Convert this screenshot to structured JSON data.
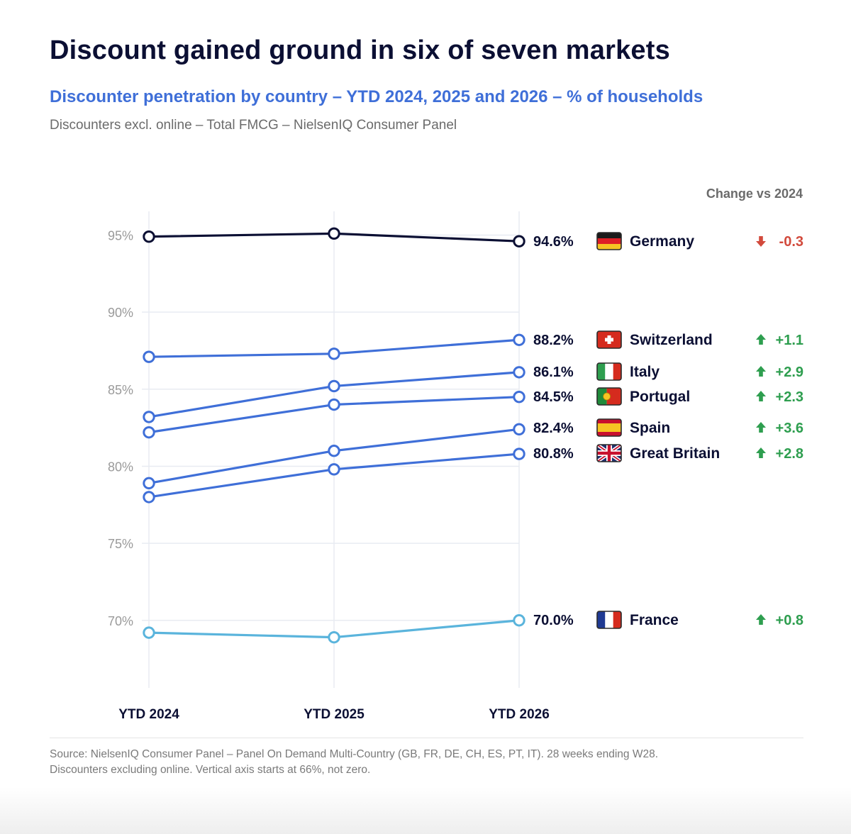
{
  "header": {
    "title": "Discount gained ground in six of seven markets",
    "subtitle": "Discounter penetration by country – YTD 2024, 2025 and 2026 – % of households",
    "note": "Discounters excl. online – Total FMCG – NielsenIQ Consumer Panel"
  },
  "footer": {
    "source_line1": "Source: NielsenIQ Consumer Panel – Panel On Demand Multi-Country (GB, FR, DE, CH, ES, PT, IT). 28 weeks ending W28.",
    "source_line2": "Discounters excluding online. Vertical axis starts at 66%, not zero."
  },
  "colors": {
    "germany_line": "#0b0f33",
    "blue_line": "#3f6fd8",
    "france_line": "#5ab4dc",
    "up": "#2e9e4f",
    "down": "#d24a3c",
    "grid": "#e8ebf2",
    "tick_text": "#9a9a9a"
  },
  "chart_data": {
    "type": "line",
    "title": "Discounter penetration by country – YTD 2024, 2025 and 2026 – % of households",
    "x": [
      "YTD 2024",
      "YTD 2025",
      "YTD 2026"
    ],
    "ylim": [
      66,
      96
    ],
    "yticks": [
      70,
      75,
      80,
      85,
      90,
      95
    ],
    "ytick_labels": [
      "70%",
      "75%",
      "80%",
      "85%",
      "90%",
      "95%"
    ],
    "grid": true,
    "change_header": "Change vs 2024",
    "series": [
      {
        "name": "Germany",
        "values": [
          94.9,
          95.1,
          94.6
        ],
        "end_label": "94.6%",
        "change": "-0.3",
        "direction": "down",
        "flag": "germany-flag-icon",
        "color": "#0b0f33"
      },
      {
        "name": "Switzerland",
        "values": [
          87.1,
          87.3,
          88.2
        ],
        "end_label": "88.2%",
        "change": "+1.1",
        "direction": "up",
        "flag": "switzerland-flag-icon",
        "color": "#3f6fd8"
      },
      {
        "name": "Italy",
        "values": [
          83.2,
          85.2,
          86.1
        ],
        "end_label": "86.1%",
        "change": "+2.9",
        "direction": "up",
        "flag": "italy-flag-icon",
        "color": "#3f6fd8"
      },
      {
        "name": "Portugal",
        "values": [
          82.2,
          84.0,
          84.5
        ],
        "end_label": "84.5%",
        "change": "+2.3",
        "direction": "up",
        "flag": "portugal-flag-icon",
        "color": "#3f6fd8"
      },
      {
        "name": "Spain",
        "values": [
          78.9,
          81.0,
          82.4
        ],
        "end_label": "82.4%",
        "change": "+3.6",
        "direction": "up",
        "flag": "spain-flag-icon",
        "color": "#3f6fd8"
      },
      {
        "name": "Great Britain",
        "values": [
          78.0,
          79.8,
          80.8
        ],
        "end_label": "80.8%",
        "change": "+2.8",
        "direction": "up",
        "flag": "great-britain-flag-icon",
        "color": "#3f6fd8"
      },
      {
        "name": "France",
        "values": [
          69.2,
          68.9,
          70.0
        ],
        "end_label": "70.0%",
        "change": "+0.8",
        "direction": "up",
        "flag": "france-flag-icon",
        "color": "#5ab4dc"
      }
    ]
  }
}
